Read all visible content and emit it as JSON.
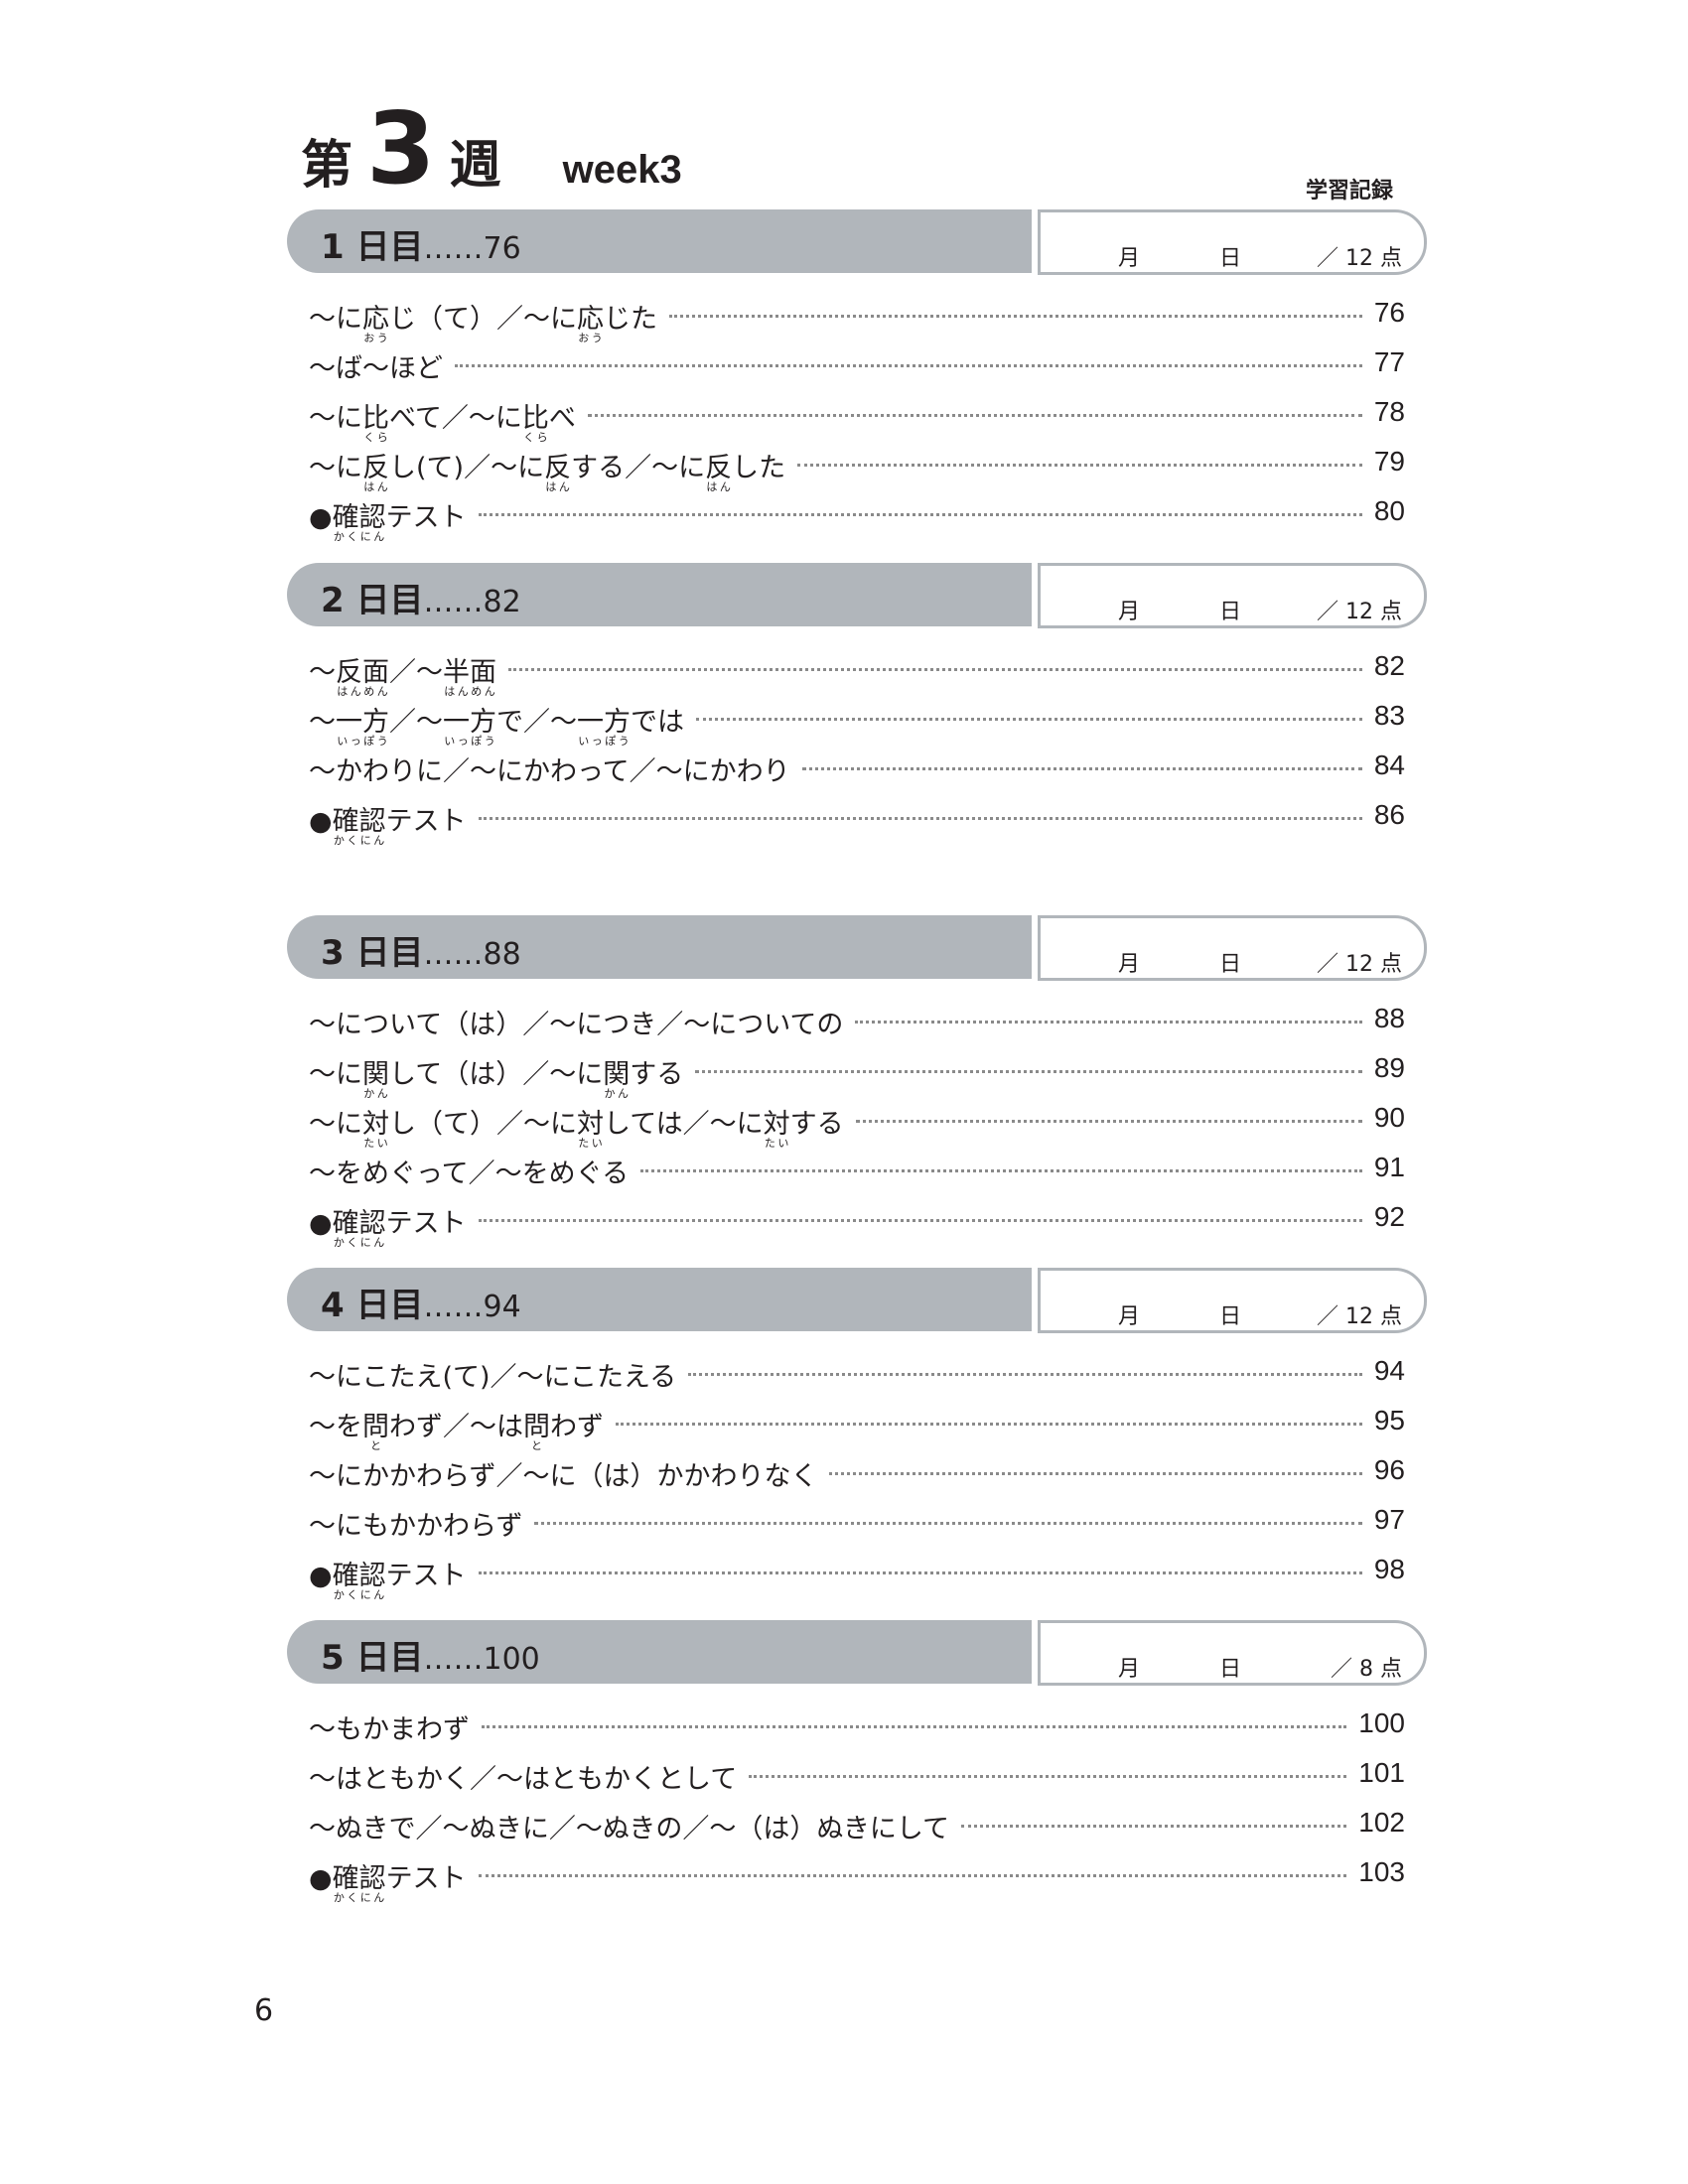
{
  "header": {
    "prefix": "第",
    "week_number": "3",
    "suffix": "週",
    "english": "week3",
    "record_label": "学習記録"
  },
  "record_box": {
    "month": "月",
    "day": "日"
  },
  "sections": [
    {
      "day": "1 日目",
      "page": "……76",
      "score": "／ 12 点",
      "items": [
        {
          "segments": [
            [
              "〜に"
            ],
            [
              "応",
              "おう"
            ],
            [
              "じ（て）／〜に"
            ],
            [
              "応",
              "おう"
            ],
            [
              "じた"
            ]
          ],
          "page": "76"
        },
        {
          "segments": [
            [
              "〜ば〜ほど"
            ]
          ],
          "page": "77"
        },
        {
          "segments": [
            [
              "〜に"
            ],
            [
              "比",
              "くら"
            ],
            [
              "べて／〜に"
            ],
            [
              "比",
              "くら"
            ],
            [
              "べ"
            ]
          ],
          "page": "78"
        },
        {
          "segments": [
            [
              "〜に"
            ],
            [
              "反",
              "はん"
            ],
            [
              "し(て)／〜に"
            ],
            [
              "反",
              "はん"
            ],
            [
              "する／〜に"
            ],
            [
              "反",
              "はん"
            ],
            [
              "した"
            ]
          ],
          "page": "79"
        },
        {
          "segments": [
            [
              "●"
            ],
            [
              "確認",
              "かくにん"
            ],
            [
              "テスト"
            ]
          ],
          "page": "80"
        }
      ]
    },
    {
      "day": "2 日目",
      "page": "……82",
      "score": "／ 12 点",
      "items": [
        {
          "segments": [
            [
              "〜"
            ],
            [
              "反面",
              "はんめん"
            ],
            [
              "／〜"
            ],
            [
              "半面",
              "はんめん"
            ]
          ],
          "page": "82"
        },
        {
          "segments": [
            [
              "〜"
            ],
            [
              "一方",
              "いっぽう"
            ],
            [
              "／〜"
            ],
            [
              "一方",
              "いっぽう"
            ],
            [
              "で／〜"
            ],
            [
              "一方",
              "いっぽう"
            ],
            [
              "では"
            ]
          ],
          "page": "83"
        },
        {
          "segments": [
            [
              "〜かわりに／〜にかわって／〜にかわり"
            ]
          ],
          "page": "84"
        },
        {
          "segments": [
            [
              "●"
            ],
            [
              "確認",
              "かくにん"
            ],
            [
              "テスト"
            ]
          ],
          "page": "86"
        }
      ]
    },
    {
      "day": "3 日目",
      "page": "……88",
      "score": "／ 12 点",
      "items": [
        {
          "segments": [
            [
              "〜について（は）／〜につき／〜についての"
            ]
          ],
          "page": "88"
        },
        {
          "segments": [
            [
              "〜に"
            ],
            [
              "関",
              "かん"
            ],
            [
              "して（は）／〜に"
            ],
            [
              "関",
              "かん"
            ],
            [
              "する"
            ]
          ],
          "page": "89"
        },
        {
          "segments": [
            [
              "〜に"
            ],
            [
              "対",
              "たい"
            ],
            [
              "し（て）／〜に"
            ],
            [
              "対",
              "たい"
            ],
            [
              "しては／〜に"
            ],
            [
              "対",
              "たい"
            ],
            [
              "する"
            ]
          ],
          "page": "90"
        },
        {
          "segments": [
            [
              "〜をめぐって／〜をめぐる"
            ]
          ],
          "page": "91"
        },
        {
          "segments": [
            [
              "●"
            ],
            [
              "確認",
              "かくにん"
            ],
            [
              "テスト"
            ]
          ],
          "page": "92"
        }
      ]
    },
    {
      "day": "4 日目",
      "page": "……94",
      "score": "／ 12 点",
      "items": [
        {
          "segments": [
            [
              "〜にこたえ(て)／〜にこたえる"
            ]
          ],
          "page": "94"
        },
        {
          "segments": [
            [
              "〜を"
            ],
            [
              "問",
              "と"
            ],
            [
              "わず／〜は"
            ],
            [
              "問",
              "と"
            ],
            [
              "わず"
            ]
          ],
          "page": "95"
        },
        {
          "segments": [
            [
              "〜にかかわらず／〜に（は）かかわりなく"
            ]
          ],
          "page": "96"
        },
        {
          "segments": [
            [
              "〜にもかかわらず"
            ]
          ],
          "page": "97"
        },
        {
          "segments": [
            [
              "●"
            ],
            [
              "確認",
              "かくにん"
            ],
            [
              "テスト"
            ]
          ],
          "page": "98"
        }
      ]
    },
    {
      "day": "5 日目",
      "page": "……100",
      "score": "／ 8 点",
      "items": [
        {
          "segments": [
            [
              "〜もかまわず"
            ]
          ],
          "page": "100"
        },
        {
          "segments": [
            [
              "〜はともかく／〜はともかくとして"
            ]
          ],
          "page": "101"
        },
        {
          "segments": [
            [
              "〜ぬきで／〜ぬきに／〜ぬきの／〜（は）ぬきにして"
            ]
          ],
          "page": "102"
        },
        {
          "segments": [
            [
              "●"
            ],
            [
              "確認",
              "かくにん"
            ],
            [
              "テスト"
            ]
          ],
          "page": "103"
        }
      ]
    }
  ],
  "page_number": "6"
}
